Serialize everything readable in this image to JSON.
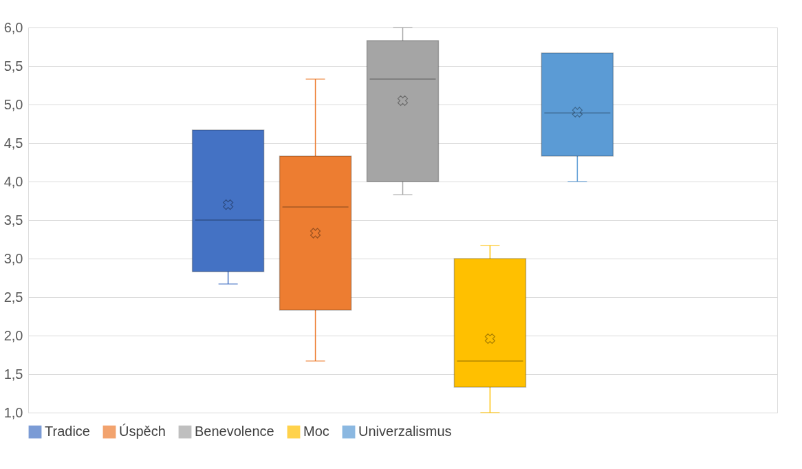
{
  "chart_data": {
    "type": "box",
    "categories": [
      null
    ],
    "series": [
      {
        "name": "Tradice",
        "color": "#4472c4",
        "boxes": [
          {
            "low": 2.67,
            "q1": 2.83,
            "median": 3.5,
            "q3": 4.67,
            "high": 4.67,
            "mean": 3.7
          }
        ]
      },
      {
        "name": "Úspěch",
        "color": "#ed7d31",
        "boxes": [
          {
            "low": 1.67,
            "q1": 2.33,
            "median": 3.67,
            "q3": 4.33,
            "high": 5.33,
            "mean": 3.33
          }
        ]
      },
      {
        "name": "Benevolence",
        "color": "#a5a5a5",
        "boxes": [
          {
            "low": 3.83,
            "q1": 4.0,
            "median": 5.33,
            "q3": 5.83,
            "high": 6.0,
            "mean": 5.05
          }
        ]
      },
      {
        "name": "Moc",
        "color": "#ffc000",
        "boxes": [
          {
            "low": 1.0,
            "q1": 1.33,
            "median": 1.67,
            "q3": 3.0,
            "high": 3.17,
            "mean": 1.96
          }
        ]
      },
      {
        "name": "Univerzalismus",
        "color": "#5b9bd5",
        "boxes": [
          {
            "low": 4.0,
            "q1": 4.33,
            "median": 4.89,
            "q3": 5.67,
            "high": 5.67,
            "mean": 4.9
          }
        ]
      }
    ],
    "ylim": [
      1,
      6
    ],
    "yticks": [
      {
        "value": 1,
        "label": "1,0"
      },
      {
        "value": 1.5,
        "label": "1,5"
      },
      {
        "value": 2,
        "label": "2,0"
      },
      {
        "value": 2.5,
        "label": "2,5"
      },
      {
        "value": 3,
        "label": "3,0"
      },
      {
        "value": 3.5,
        "label": "3,5"
      },
      {
        "value": 4,
        "label": "4,0"
      },
      {
        "value": 4.5,
        "label": "4,5"
      },
      {
        "value": 5,
        "label": "5,0"
      },
      {
        "value": 5.5,
        "label": "5,5"
      },
      {
        "value": 6,
        "label": "6,0"
      }
    ],
    "grid": "y",
    "legend": "bottom",
    "tick_labels": "y",
    "marker": "cross"
  }
}
